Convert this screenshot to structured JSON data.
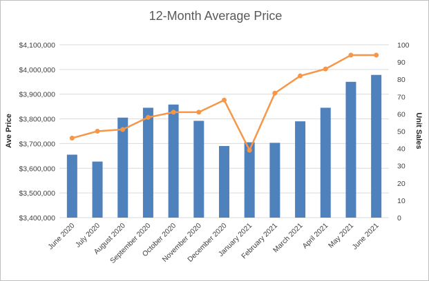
{
  "chart_data": {
    "type": "bar+line",
    "title": "12-Month Average Price",
    "categories": [
      "June 2020",
      "July 2020",
      "August 2020",
      "September 2020",
      "October 2020",
      "November 2020",
      "December 2020",
      "January 2021",
      "February 2021",
      "March 2021",
      "April 2021",
      "May 2021",
      "June 2021"
    ],
    "y_left": {
      "label": "Ave Price",
      "range": [
        3400000,
        4100000
      ],
      "ticks": [
        "$3,400,000",
        "$3,500,000",
        "$3,600,000",
        "$3,700,000",
        "$3,800,000",
        "$3,900,000",
        "$4,000,000",
        "$4,100,000"
      ]
    },
    "y_right": {
      "label": "Unit Sales",
      "range": [
        0,
        100
      ],
      "ticks": [
        "0",
        "10",
        "20",
        "30",
        "40",
        "50",
        "60",
        "70",
        "80",
        "90",
        "100"
      ]
    },
    "series": [
      {
        "kind": "bar",
        "axis": "left",
        "color": "#4f81bd",
        "values": [
          3655000,
          3627000,
          3805000,
          3845000,
          3858000,
          3792000,
          3690000,
          3705000,
          3703000,
          3790000,
          3845000,
          3950000,
          3978000
        ]
      },
      {
        "kind": "line",
        "axis": "right",
        "color": "#f79646",
        "values": [
          46,
          50,
          51,
          58,
          61,
          61,
          68,
          39,
          72,
          82,
          86,
          94,
          94
        ]
      }
    ],
    "grid": true,
    "legend": "none"
  }
}
